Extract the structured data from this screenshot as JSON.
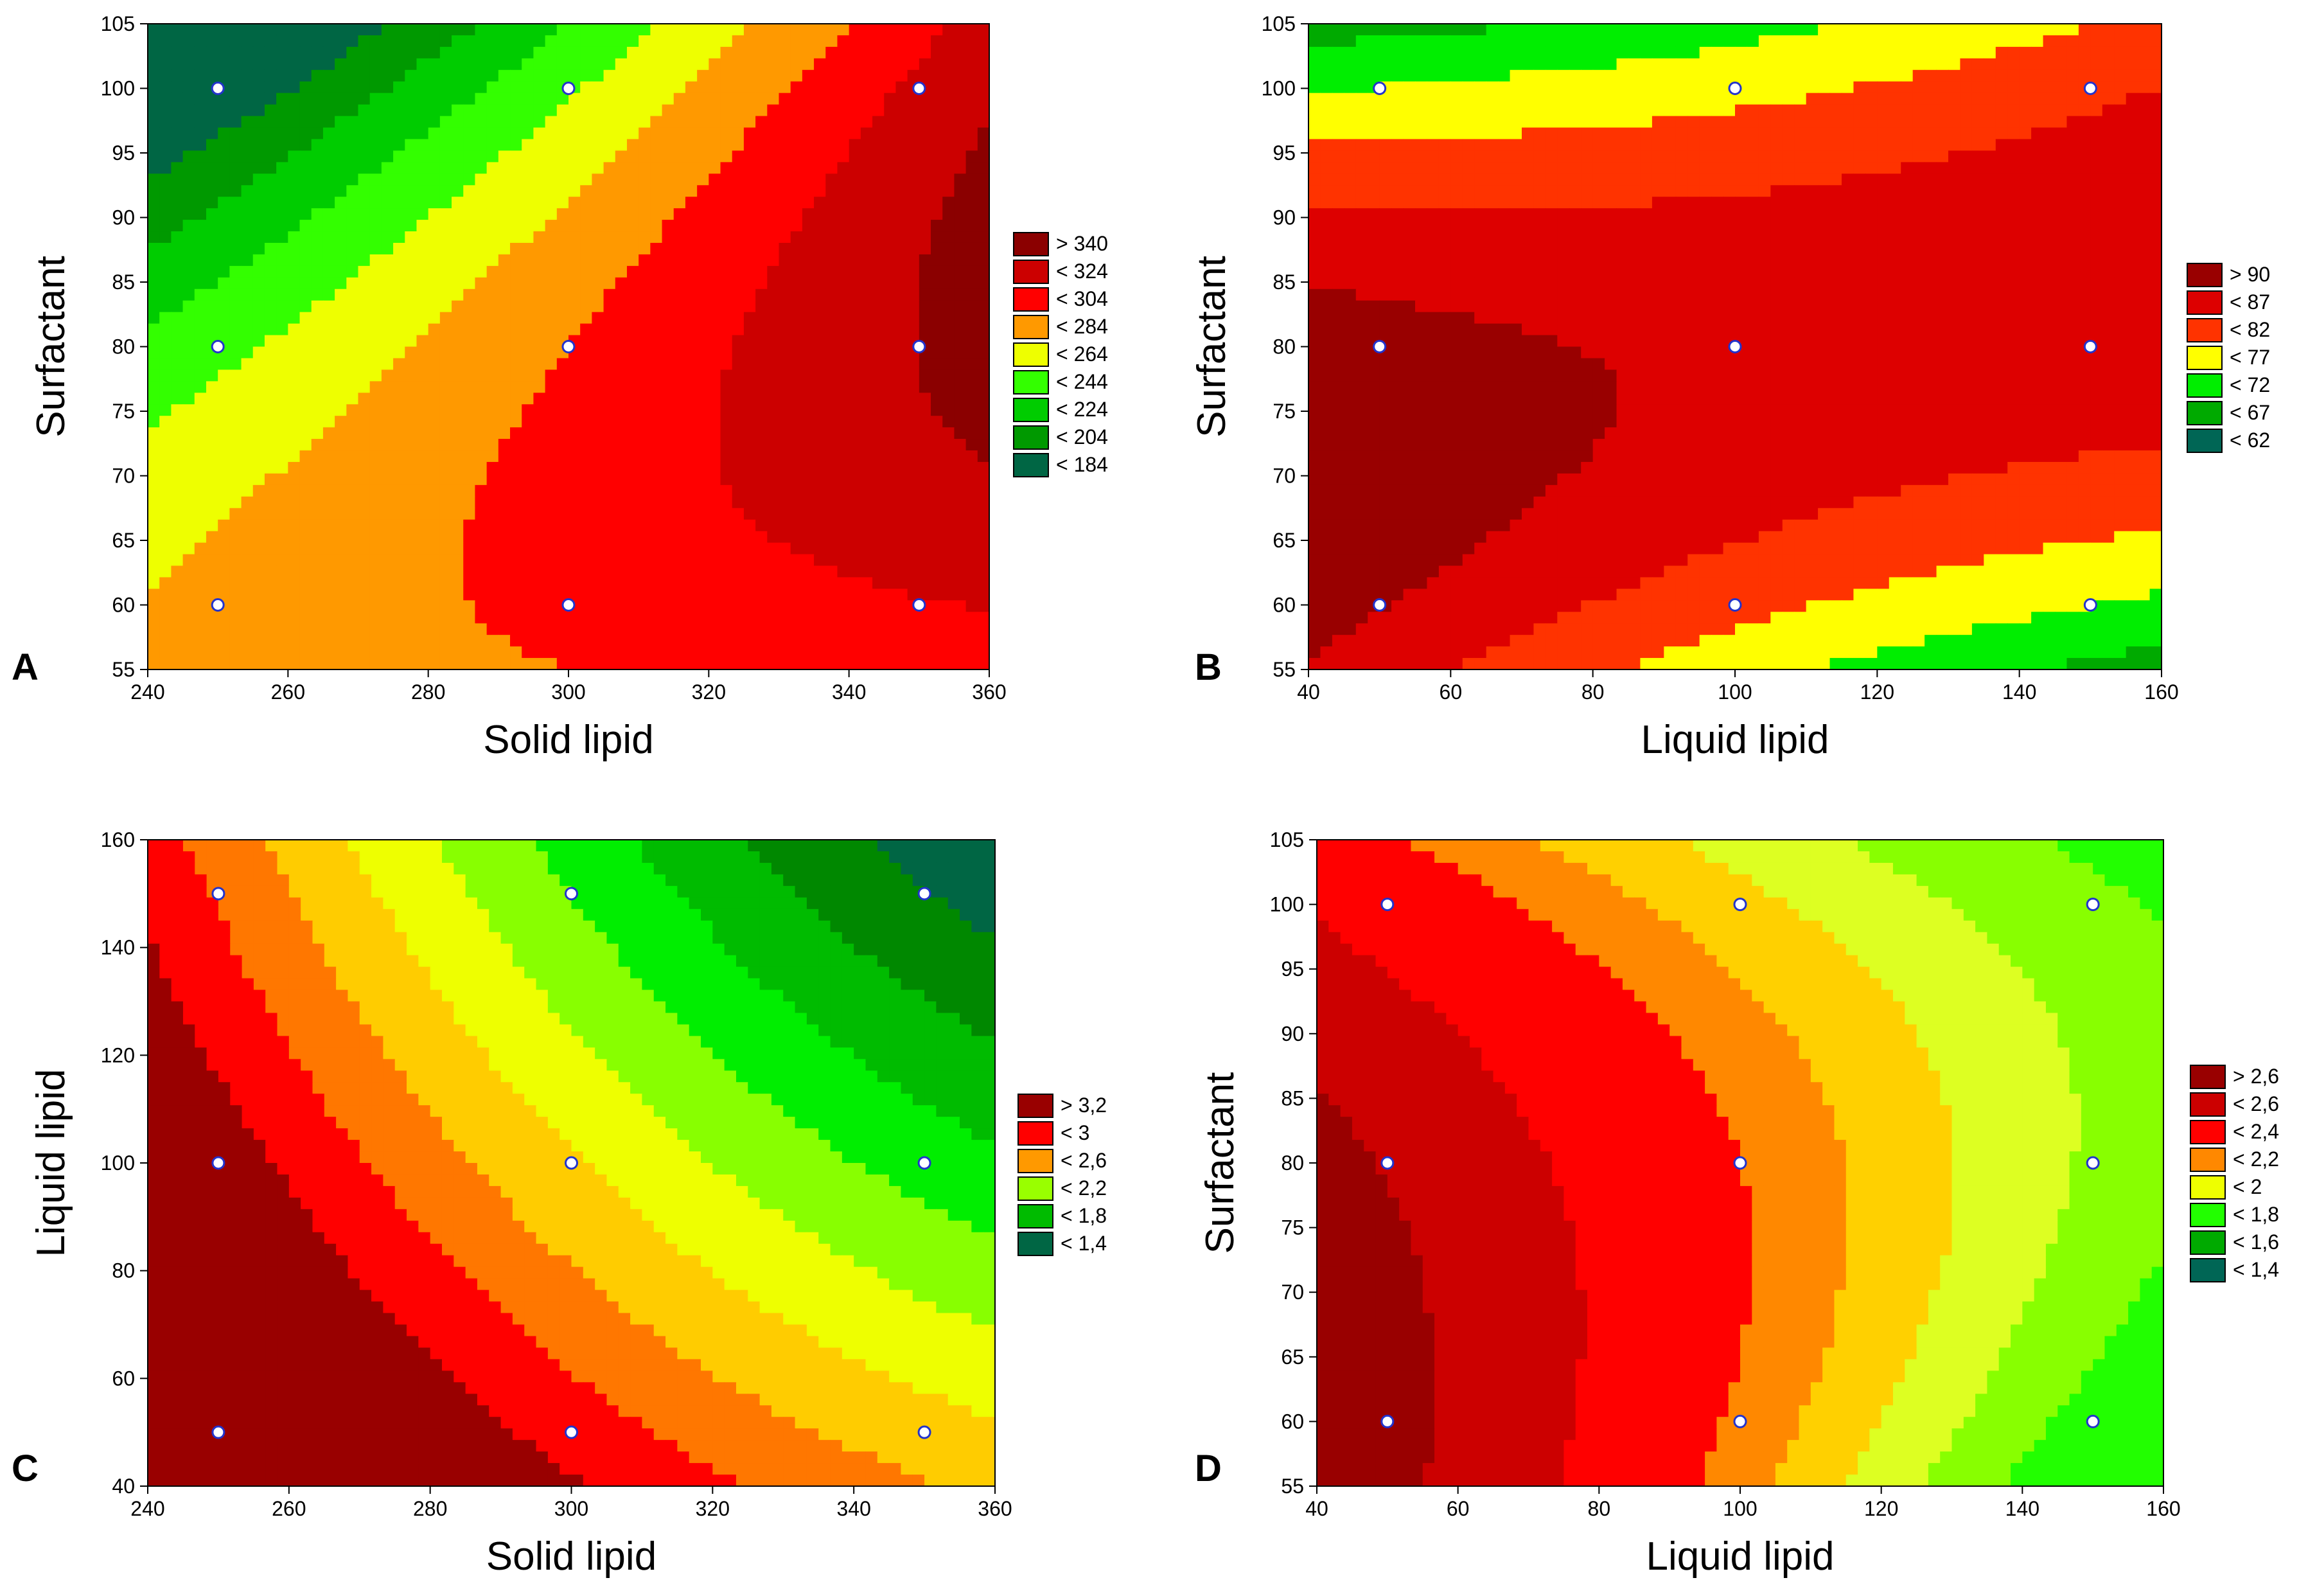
{
  "chart_data": [
    {
      "type": "contour",
      "panel_label": "A",
      "xlabel": "Solid lipid",
      "ylabel": "Surfactant",
      "xlim": [
        240,
        360
      ],
      "ylim": [
        55,
        105
      ],
      "x_ticks": [
        "240",
        "260",
        "280",
        "300",
        "320",
        "340",
        "360"
      ],
      "y_ticks": [
        "55",
        "60",
        "65",
        "70",
        "75",
        "80",
        "85",
        "90",
        "95",
        "100",
        "105"
      ],
      "design_points": [
        [
          250,
          100
        ],
        [
          300,
          100
        ],
        [
          350,
          100
        ],
        [
          250,
          80
        ],
        [
          300,
          80
        ],
        [
          350,
          80
        ],
        [
          250,
          60
        ],
        [
          300,
          60
        ],
        [
          350,
          60
        ]
      ],
      "legend": [
        {
          "label": "> 340",
          "color": "#8B0000"
        },
        {
          "label": "< 324",
          "color": "#CC0000"
        },
        {
          "label": "< 304",
          "color": "#FF0000"
        },
        {
          "label": "< 284",
          "color": "#FF9900"
        },
        {
          "label": "< 264",
          "color": "#EEFF00"
        },
        {
          "label": "< 244",
          "color": "#33FF00"
        },
        {
          "label": "< 224",
          "color": "#00CC00"
        },
        {
          "label": "< 204",
          "color": "#009900"
        },
        {
          "label": "< 184",
          "color": "#006644"
        }
      ],
      "contour_colors": [
        "#006644",
        "#009900",
        "#00CC00",
        "#33FF00",
        "#EEFF00",
        "#FF9900",
        "#FF0000",
        "#CC0000",
        "#8B0000"
      ],
      "levels": [
        {
          "value": 184,
          "color": "#006644"
        },
        {
          "value": 204,
          "color": "#009900"
        },
        {
          "value": 224,
          "color": "#00CC00"
        },
        {
          "value": 244,
          "color": "#33FF00"
        },
        {
          "value": 264,
          "color": "#EEFF00"
        },
        {
          "value": 284,
          "color": "#FF9900"
        },
        {
          "value": 304,
          "color": "#FF0000"
        },
        {
          "value": 324,
          "color": "#CC0000"
        },
        {
          "value": 340,
          "color": "#8B0000"
        }
      ],
      "model": "A"
    },
    {
      "type": "contour",
      "panel_label": "B",
      "xlabel": "Liquid lipid",
      "ylabel": "Surfactant",
      "xlim": [
        40,
        160
      ],
      "ylim": [
        55,
        105
      ],
      "x_ticks": [
        "40",
        "60",
        "80",
        "100",
        "120",
        "140",
        "160"
      ],
      "y_ticks": [
        "55",
        "60",
        "65",
        "70",
        "75",
        "80",
        "85",
        "90",
        "95",
        "100",
        "105"
      ],
      "design_points": [
        [
          50,
          100
        ],
        [
          100,
          100
        ],
        [
          150,
          100
        ],
        [
          50,
          80
        ],
        [
          100,
          80
        ],
        [
          150,
          80
        ],
        [
          50,
          60
        ],
        [
          100,
          60
        ],
        [
          150,
          60
        ]
      ],
      "legend": [
        {
          "label": "> 90",
          "color": "#990000"
        },
        {
          "label": "< 87",
          "color": "#DD0000"
        },
        {
          "label": "< 82",
          "color": "#FF3300"
        },
        {
          "label": "< 77",
          "color": "#FFFF00"
        },
        {
          "label": "< 72",
          "color": "#00EE00"
        },
        {
          "label": "< 67",
          "color": "#00AA00"
        },
        {
          "label": "< 62",
          "color": "#006655"
        }
      ],
      "contour_colors": [
        "#006655",
        "#00AA00",
        "#00EE00",
        "#FFFF00",
        "#FF3300",
        "#DD0000",
        "#990000"
      ],
      "levels": [
        {
          "value": 62,
          "color": "#006655"
        },
        {
          "value": 67,
          "color": "#00AA00"
        },
        {
          "value": 72,
          "color": "#00EE00"
        },
        {
          "value": 77,
          "color": "#FFFF00"
        },
        {
          "value": 82,
          "color": "#FF3300"
        },
        {
          "value": 87,
          "color": "#DD0000"
        },
        {
          "value": 90,
          "color": "#990000"
        }
      ],
      "model": "B"
    },
    {
      "type": "contour",
      "panel_label": "C",
      "xlabel": "Solid lipid",
      "ylabel": "Liquid lipid",
      "xlim": [
        240,
        360
      ],
      "ylim": [
        40,
        160
      ],
      "x_ticks": [
        "240",
        "260",
        "280",
        "300",
        "320",
        "340",
        "360"
      ],
      "y_ticks": [
        "40",
        "60",
        "80",
        "100",
        "120",
        "140",
        "160"
      ],
      "design_points": [
        [
          250,
          150
        ],
        [
          300,
          150
        ],
        [
          350,
          150
        ],
        [
          250,
          100
        ],
        [
          300,
          100
        ],
        [
          350,
          100
        ],
        [
          250,
          50
        ],
        [
          300,
          50
        ],
        [
          350,
          50
        ]
      ],
      "legend": [
        {
          "label": "> 3,2",
          "color": "#990000"
        },
        {
          "label": "< 3",
          "color": "#FF0000"
        },
        {
          "label": "< 2,6",
          "color": "#FF9900"
        },
        {
          "label": "< 2,2",
          "color": "#99FF00"
        },
        {
          "label": "< 1,8",
          "color": "#00BB00"
        },
        {
          "label": "< 1,4",
          "color": "#006644"
        }
      ],
      "contour_colors": [
        "#006644",
        "#008800",
        "#00BB00",
        "#00EE00",
        "#88FF00",
        "#EEFF00",
        "#FFCC00",
        "#FF7700",
        "#FF0000",
        "#990000"
      ],
      "levels": [
        {
          "value": 1.4,
          "color": "#006644"
        },
        {
          "value": 1.6,
          "color": "#008800"
        },
        {
          "value": 1.8,
          "color": "#00BB00"
        },
        {
          "value": 2.0,
          "color": "#00EE00"
        },
        {
          "value": 2.2,
          "color": "#88FF00"
        },
        {
          "value": 2.4,
          "color": "#EEFF00"
        },
        {
          "value": 2.6,
          "color": "#FFCC00"
        },
        {
          "value": 2.8,
          "color": "#FF7700"
        },
        {
          "value": 3.0,
          "color": "#FF0000"
        },
        {
          "value": 3.2,
          "color": "#990000"
        }
      ],
      "model": "C"
    },
    {
      "type": "contour",
      "panel_label": "D",
      "xlabel": "Liquid lipid",
      "ylabel": "Surfactant",
      "xlim": [
        40,
        160
      ],
      "ylim": [
        55,
        105
      ],
      "x_ticks": [
        "40",
        "60",
        "80",
        "100",
        "120",
        "140",
        "160"
      ],
      "y_ticks": [
        "55",
        "60",
        "65",
        "70",
        "75",
        "80",
        "85",
        "90",
        "95",
        "100",
        "105"
      ],
      "design_points": [
        [
          50,
          100
        ],
        [
          100,
          100
        ],
        [
          150,
          100
        ],
        [
          50,
          80
        ],
        [
          100,
          80
        ],
        [
          150,
          80
        ],
        [
          50,
          60
        ],
        [
          100,
          60
        ],
        [
          150,
          60
        ]
      ],
      "legend": [
        {
          "label": "> 2,6",
          "color": "#990000"
        },
        {
          "label": "< 2,6",
          "color": "#CC0000"
        },
        {
          "label": "< 2,4",
          "color": "#FF0000"
        },
        {
          "label": "< 2,2",
          "color": "#FF8800"
        },
        {
          "label": "< 2",
          "color": "#EEFF00"
        },
        {
          "label": "< 1,8",
          "color": "#22FF00"
        },
        {
          "label": "< 1,6",
          "color": "#00AA00"
        },
        {
          "label": "< 1,4",
          "color": "#006655"
        }
      ],
      "contour_colors": [
        "#006655",
        "#00AA00",
        "#22FF00",
        "#88FF00",
        "#DDFF22",
        "#FFD000",
        "#FF8800",
        "#FF0000",
        "#CC0000",
        "#990000"
      ],
      "levels": [
        {
          "value": 1.4,
          "color": "#006655"
        },
        {
          "value": 1.6,
          "color": "#00AA00"
        },
        {
          "value": 1.8,
          "color": "#22FF00"
        },
        {
          "value": 1.9,
          "color": "#88FF00"
        },
        {
          "value": 2.0,
          "color": "#DDFF22"
        },
        {
          "value": 2.1,
          "color": "#FFD000"
        },
        {
          "value": 2.2,
          "color": "#FF8800"
        },
        {
          "value": 2.4,
          "color": "#FF0000"
        },
        {
          "value": 2.6,
          "color": "#CC0000"
        },
        {
          "value": 2.75,
          "color": "#990000"
        }
      ],
      "model": "D"
    }
  ]
}
